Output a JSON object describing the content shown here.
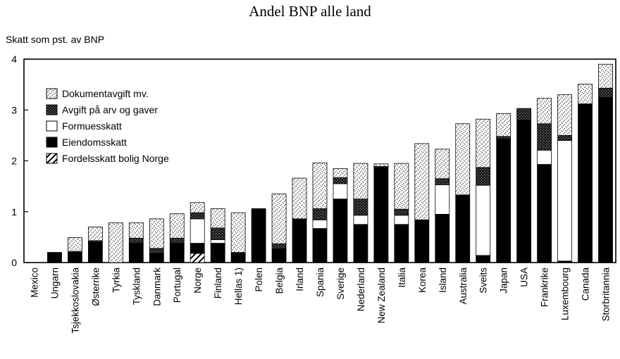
{
  "chart_data": {
    "type": "bar",
    "stacked": true,
    "title": "Andel BNP alle land",
    "ylabel": "Skatt som pst. av BNP",
    "ylim": [
      0,
      4
    ],
    "yticks": [
      0,
      1,
      2,
      3,
      4
    ],
    "grid": false,
    "legend_position": "top-left",
    "categories": [
      "Mexico",
      "Ungarn",
      "Tsjekkoslovakia",
      "Østerrike",
      "Tyrkia",
      "Tyskland",
      "Danmark",
      "Portugal",
      "Norge",
      "Finland",
      "Hellas 1)",
      "Polen",
      "Belgia",
      "Irland",
      "Spania",
      "Sverige",
      "Nederland",
      "New Zealand",
      "Italia",
      "Korea",
      "Island",
      "Australia",
      "Sveits",
      "Japan",
      "USA",
      "Frankrike",
      "Luxembourg",
      "Canada",
      "Storbritannia"
    ],
    "series": [
      {
        "name": "Fordelsskatt bolig Norge",
        "pattern": "hatch",
        "values": [
          0,
          0,
          0,
          0,
          0,
          0,
          0,
          0,
          0.18,
          0,
          0,
          0,
          0,
          0,
          0,
          0,
          0,
          0,
          0,
          0,
          0,
          0,
          0,
          0,
          0,
          0,
          0,
          0,
          0
        ]
      },
      {
        "name": "Eiendomsskatt",
        "pattern": "solid",
        "values": [
          0,
          0.2,
          0.2,
          0.4,
          0,
          0.38,
          0.18,
          0.38,
          0.2,
          0.38,
          0.18,
          1.06,
          0.27,
          0.86,
          0.67,
          1.25,
          0.75,
          1.87,
          0.75,
          0.84,
          0.95,
          1.33,
          0.14,
          2.43,
          2.8,
          1.93,
          0.03,
          3.12,
          3.25
        ]
      },
      {
        "name": "Formuesskatt",
        "pattern": "white",
        "values": [
          0,
          0,
          0,
          0,
          0,
          0,
          0,
          0,
          0.48,
          0.07,
          0,
          0,
          0,
          0,
          0.17,
          0.3,
          0.18,
          0,
          0.18,
          0,
          0.58,
          0,
          1.38,
          0,
          0,
          0.28,
          2.37,
          0,
          0
        ]
      },
      {
        "name": "Avgift på arv og gaver",
        "pattern": "dense",
        "values": [
          0,
          0,
          0.02,
          0.03,
          0,
          0.1,
          0.1,
          0.1,
          0.12,
          0.23,
          0.02,
          0,
          0.1,
          0,
          0.22,
          0.12,
          0.32,
          0.02,
          0.12,
          0,
          0.12,
          0,
          0.35,
          0.05,
          0.23,
          0.52,
          0.1,
          0,
          0.18
        ]
      },
      {
        "name": "Dokumentavgift mv.",
        "pattern": "light",
        "values": [
          0,
          0,
          0.27,
          0.27,
          0.78,
          0.3,
          0.58,
          0.48,
          0.2,
          0.38,
          0.78,
          0,
          0.98,
          0.8,
          0.9,
          0.18,
          0.7,
          0.05,
          0.9,
          1.5,
          0.58,
          1.4,
          0.95,
          0.45,
          0,
          0.5,
          0.8,
          0.39,
          0.47
        ]
      }
    ]
  },
  "legend_order": [
    "Dokumentavgift mv.",
    "Avgift på arv og gaver",
    "Formuesskatt",
    "Eiendomsskatt",
    "Fordelsskatt bolig Norge"
  ]
}
